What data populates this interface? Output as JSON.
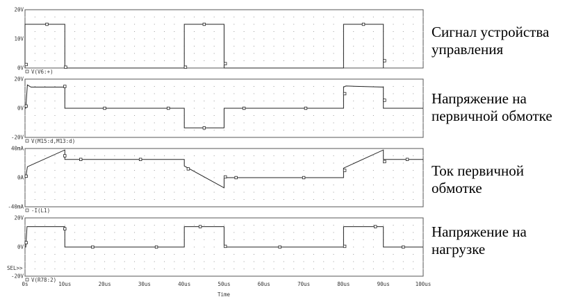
{
  "chart_data": {
    "type": "line",
    "xlabel": "Time",
    "x_unit": "us",
    "x_ticks": [
      "0s",
      "10us",
      "20us",
      "30us",
      "40us",
      "50us",
      "60us",
      "70us",
      "80us",
      "90us",
      "100us"
    ],
    "xlim": [
      0,
      100
    ],
    "selector_label": "SEL>>",
    "marker": "square",
    "panels": [
      {
        "trace_label": "V(V6:+)",
        "ylim": [
          0,
          20
        ],
        "y_ticks": [
          {
            "v": 0,
            "label": "0V"
          },
          {
            "v": 10,
            "label": "10V"
          },
          {
            "v": 20,
            "label": "20V"
          }
        ],
        "points": [
          [
            0,
            0
          ],
          [
            0,
            15
          ],
          [
            10,
            15
          ],
          [
            10,
            0
          ],
          [
            40,
            0
          ],
          [
            40,
            15
          ],
          [
            50,
            15
          ],
          [
            50,
            0
          ],
          [
            80,
            0
          ],
          [
            80,
            15
          ],
          [
            90,
            15
          ],
          [
            90,
            0
          ]
        ],
        "marker_points": [
          [
            0.3,
            1.2
          ],
          [
            5.5,
            15
          ],
          [
            10.2,
            0.3
          ],
          [
            40.3,
            0.3
          ],
          [
            45,
            15
          ],
          [
            50.3,
            1.5
          ],
          [
            85,
            15
          ],
          [
            90.3,
            2.5
          ]
        ]
      },
      {
        "trace_label": "V(M15:d,M13:d)",
        "ylim": [
          -20,
          20
        ],
        "y_ticks": [
          {
            "v": -20,
            "label": "-20V"
          },
          {
            "v": 0,
            "label": "0V"
          },
          {
            "v": 20,
            "label": "20V"
          }
        ],
        "points": [
          [
            0,
            0
          ],
          [
            0.2,
            0
          ],
          [
            0.6,
            16
          ],
          [
            1.5,
            14.5
          ],
          [
            10,
            14.5
          ],
          [
            10,
            0
          ],
          [
            40,
            0
          ],
          [
            40,
            -13.5
          ],
          [
            50,
            -13.5
          ],
          [
            50,
            0
          ],
          [
            80,
            0
          ],
          [
            80,
            14.5
          ],
          [
            80.6,
            15.3
          ],
          [
            90,
            14.5
          ],
          [
            90,
            0
          ],
          [
            100,
            0
          ]
        ],
        "marker_points": [
          [
            0.3,
            1.5
          ],
          [
            10,
            15
          ],
          [
            20,
            0
          ],
          [
            36,
            0
          ],
          [
            45,
            -13.5
          ],
          [
            55,
            0
          ],
          [
            70.5,
            0
          ],
          [
            80.3,
            10
          ],
          [
            90.3,
            5.5
          ]
        ]
      },
      {
        "trace_label": "-I(L1)",
        "ylim": [
          -40,
          40
        ],
        "y_ticks": [
          {
            "v": -40,
            "label": "-40mA"
          },
          {
            "v": 0,
            "label": "0A"
          },
          {
            "v": 40,
            "label": "40mA"
          }
        ],
        "points": [
          [
            0,
            0
          ],
          [
            0.2,
            0
          ],
          [
            0.6,
            15
          ],
          [
            10,
            38
          ],
          [
            10,
            25
          ],
          [
            40,
            25
          ],
          [
            40,
            16
          ],
          [
            50,
            -14
          ],
          [
            50,
            0
          ],
          [
            80,
            0
          ],
          [
            80,
            13
          ],
          [
            90,
            38
          ],
          [
            90,
            25
          ],
          [
            100,
            25
          ]
        ],
        "marker_points": [
          [
            0.3,
            2
          ],
          [
            10,
            30
          ],
          [
            14,
            25
          ],
          [
            29,
            25
          ],
          [
            41,
            12
          ],
          [
            50.3,
            1
          ],
          [
            53,
            0
          ],
          [
            70,
            0
          ],
          [
            80.3,
            10
          ],
          [
            90.3,
            22
          ],
          [
            96,
            25
          ]
        ]
      },
      {
        "trace_label": "V(R78:2)",
        "ylim": [
          -20,
          20
        ],
        "y_ticks": [
          {
            "v": -20,
            "label": "-20V"
          },
          {
            "v": 0,
            "label": "0V"
          },
          {
            "v": 20,
            "label": "20V"
          }
        ],
        "points": [
          [
            0,
            0
          ],
          [
            0.2,
            0
          ],
          [
            0.5,
            14
          ],
          [
            10,
            14
          ],
          [
            10,
            0
          ],
          [
            40,
            0
          ],
          [
            40,
            14
          ],
          [
            50,
            14
          ],
          [
            50,
            0
          ],
          [
            80,
            0
          ],
          [
            80,
            14
          ],
          [
            90,
            14
          ],
          [
            90,
            0
          ],
          [
            100,
            0
          ]
        ],
        "marker_points": [
          [
            0.3,
            3
          ],
          [
            10,
            12.5
          ],
          [
            17,
            0
          ],
          [
            33,
            0
          ],
          [
            44,
            14
          ],
          [
            50.3,
            0.5
          ],
          [
            64,
            0
          ],
          [
            80.3,
            0.5
          ],
          [
            88,
            14
          ],
          [
            95,
            0
          ]
        ]
      }
    ],
    "annotations": [
      {
        "lines": [
          "Сигнал устройства",
          "управления"
        ]
      },
      {
        "lines": [
          "Напряжение на",
          "первичной обмотке"
        ]
      },
      {
        "lines": [
          "Ток первичной",
          "обмотке"
        ]
      },
      {
        "lines": [
          "Напряжение на",
          "нагрузке"
        ]
      }
    ]
  }
}
